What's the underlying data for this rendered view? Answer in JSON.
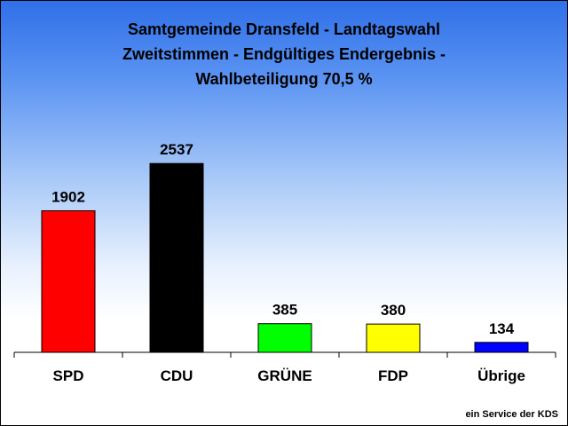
{
  "chart_data": {
    "type": "bar",
    "title_lines": [
      "Samtgemeinde Dransfeld - Landtagswahl",
      "Zweitstimmen - Endgültiges Endergebnis -",
      "Wahlbeteiligung  70,5 %"
    ],
    "categories": [
      "SPD",
      "CDU",
      "GRÜNE",
      "FDP",
      "Übrige"
    ],
    "values": [
      1902,
      2537,
      385,
      380,
      134
    ],
    "value_labels": [
      "1902",
      "2537",
      "385",
      "380",
      "134"
    ],
    "colors": [
      "#ff0000",
      "#000000",
      "#00ff00",
      "#ffff00",
      "#0000ff"
    ],
    "ylim": [
      0,
      3100
    ],
    "grid": false,
    "xlabel": "",
    "ylabel": ""
  },
  "footer": {
    "credit": "ein Service der KDS"
  }
}
